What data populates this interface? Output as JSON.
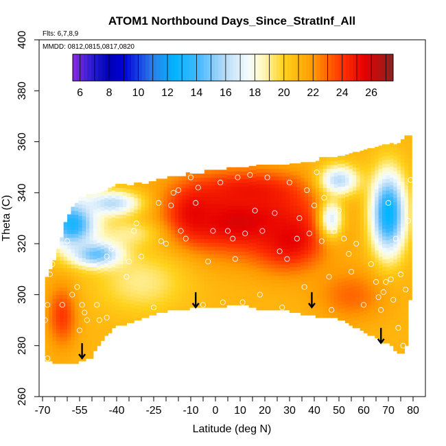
{
  "chart_data": {
    "type": "heatmap",
    "title": "ATOM1 Northbound Days_Since_StratInf_All",
    "flights_note": "Flts: 6,7,8,9",
    "dates_note": "MMDD: 0812,0815,0817,0820",
    "xlabel": "Latitude (deg N)",
    "ylabel": "Theta (C)",
    "xlim": [
      -70,
      80
    ],
    "ylim": [
      260,
      400
    ],
    "x_tick_labels": [
      "-70",
      "-55",
      "-40",
      "-25",
      "-10",
      "0",
      "10",
      "20",
      "30",
      "40",
      "50",
      "60",
      "70",
      "80"
    ],
    "x_tick_values": [
      -70,
      -55,
      -40,
      -25,
      -10,
      0,
      10,
      20,
      30,
      40,
      50,
      60,
      70,
      80
    ],
    "x_minor_tick_values": [
      -65,
      -60,
      -50,
      -45,
      -35,
      -30,
      -20,
      -15,
      -5,
      5,
      15,
      25,
      35,
      45,
      55,
      65,
      75
    ],
    "y_tick_labels": [
      "260",
      "280",
      "300",
      "320",
      "340",
      "360",
      "380",
      "400"
    ],
    "y_tick_values": [
      260,
      280,
      300,
      320,
      340,
      360,
      380,
      400
    ],
    "colorbar": {
      "tick_labels": [
        "6",
        "8",
        "10",
        "12",
        "14",
        "16",
        "18",
        "20",
        "22",
        "24",
        "26"
      ],
      "tick_values": [
        6,
        8,
        10,
        12,
        14,
        16,
        18,
        20,
        22,
        24,
        26
      ],
      "range": [
        5.5,
        27.5
      ],
      "color_stops": [
        {
          "value": 5.5,
          "color": "#8a2be2"
        },
        {
          "value": 7.0,
          "color": "#1f1acd"
        },
        {
          "value": 8.0,
          "color": "#0000b4"
        },
        {
          "value": 9.0,
          "color": "#0000d8"
        },
        {
          "value": 11.0,
          "color": "#2b7fe8"
        },
        {
          "value": 12.5,
          "color": "#00b5ff"
        },
        {
          "value": 14.0,
          "color": "#3fb7ff"
        },
        {
          "value": 16.0,
          "color": "#b9dcf7"
        },
        {
          "value": 17.5,
          "color": "#f4fbff"
        },
        {
          "value": 18.5,
          "color": "#fff9c4"
        },
        {
          "value": 20.0,
          "color": "#ffd21c"
        },
        {
          "value": 22.0,
          "color": "#ff9900"
        },
        {
          "value": 24.0,
          "color": "#ff3300"
        },
        {
          "value": 25.5,
          "color": "#e60000"
        },
        {
          "value": 27.5,
          "color": "#8b2222"
        }
      ]
    },
    "field": {
      "lat_range": [
        -69,
        79
      ],
      "valid_theta_ranges": [
        {
          "lat": -69,
          "bottom": 274,
          "top": 306
        },
        {
          "lat": -66,
          "bottom": 274,
          "top": 310
        },
        {
          "lat": -60,
          "bottom": 273,
          "top": 330
        },
        {
          "lat": -55,
          "bottom": 274,
          "top": 337
        },
        {
          "lat": -50,
          "bottom": 276,
          "top": 339
        },
        {
          "lat": -45,
          "bottom": 284,
          "top": 340
        },
        {
          "lat": -40,
          "bottom": 288,
          "top": 342
        },
        {
          "lat": -30,
          "bottom": 291,
          "top": 343
        },
        {
          "lat": -20,
          "bottom": 294,
          "top": 345
        },
        {
          "lat": -10,
          "bottom": 295,
          "top": 347
        },
        {
          "lat": 0,
          "bottom": 295,
          "top": 348
        },
        {
          "lat": 10,
          "bottom": 297,
          "top": 349
        },
        {
          "lat": 20,
          "bottom": 294,
          "top": 350
        },
        {
          "lat": 30,
          "bottom": 294,
          "top": 351
        },
        {
          "lat": 40,
          "bottom": 292,
          "top": 352
        },
        {
          "lat": 50,
          "bottom": 291,
          "top": 354
        },
        {
          "lat": 60,
          "bottom": 286,
          "top": 356
        },
        {
          "lat": 66,
          "bottom": 283,
          "top": 357
        },
        {
          "lat": 70,
          "bottom": 281,
          "top": 358
        },
        {
          "lat": 74,
          "bottom": 278,
          "top": 359
        },
        {
          "lat": 77,
          "bottom": 277,
          "top": 362
        },
        {
          "lat": 79,
          "bottom": 302,
          "top": 362
        }
      ],
      "base_value": 21,
      "features": [
        {
          "lat": 10,
          "theta": 330,
          "dlat": 28,
          "dtheta": 14,
          "value": 26
        },
        {
          "lat": -8,
          "theta": 332,
          "dlat": 10,
          "dtheta": 10,
          "value": 25.5
        },
        {
          "lat": 30,
          "theta": 322,
          "dlat": 14,
          "dtheta": 12,
          "value": 25.5
        },
        {
          "lat": 14,
          "theta": 340,
          "dlat": 22,
          "dtheta": 8,
          "value": 25
        },
        {
          "lat": 55,
          "theta": 300,
          "dlat": 14,
          "dtheta": 10,
          "value": 23
        },
        {
          "lat": -62,
          "theta": 292,
          "dlat": 6,
          "dtheta": 12,
          "value": 24
        },
        {
          "lat": -30,
          "theta": 305,
          "dlat": 18,
          "dtheta": 12,
          "value": 19
        },
        {
          "lat": -35,
          "theta": 324,
          "dlat": 12,
          "dtheta": 6,
          "value": 19
        },
        {
          "lat": -58,
          "theta": 328,
          "dlat": 10,
          "dtheta": 10,
          "value": 13
        },
        {
          "lat": -48,
          "theta": 316,
          "dlat": 10,
          "dtheta": 5,
          "value": 14.5
        },
        {
          "lat": -42,
          "theta": 336,
          "dlat": 12,
          "dtheta": 5,
          "value": 16
        },
        {
          "lat": 70,
          "theta": 332,
          "dlat": 7,
          "dtheta": 16,
          "value": 12.5
        },
        {
          "lat": 50,
          "theta": 345,
          "dlat": 8,
          "dtheta": 6,
          "value": 16
        },
        {
          "lat": 47,
          "theta": 330,
          "dlat": 5,
          "dtheta": 8,
          "value": 17
        }
      ]
    },
    "arrows": [
      {
        "lat": -54,
        "theta": 278
      },
      {
        "lat": -8,
        "theta": 298
      },
      {
        "lat": 39,
        "theta": 298
      },
      {
        "lat": 67,
        "theta": 284
      }
    ],
    "sample_points": [
      {
        "lat": -69,
        "theta": 290
      },
      {
        "lat": -68,
        "theta": 296
      },
      {
        "lat": -67,
        "theta": 308
      },
      {
        "lat": -66,
        "theta": 312
      },
      {
        "lat": -68,
        "theta": 275
      },
      {
        "lat": -62,
        "theta": 296
      },
      {
        "lat": -58,
        "theta": 300
      },
      {
        "lat": -56,
        "theta": 303
      },
      {
        "lat": -54,
        "theta": 296
      },
      {
        "lat": -53,
        "theta": 293
      },
      {
        "lat": -52,
        "theta": 290
      },
      {
        "lat": -55,
        "theta": 286
      },
      {
        "lat": -60,
        "theta": 321
      },
      {
        "lat": -48,
        "theta": 296
      },
      {
        "lat": -47,
        "theta": 290
      },
      {
        "lat": -44,
        "theta": 291
      },
      {
        "lat": -44,
        "theta": 315
      },
      {
        "lat": -42,
        "theta": 318
      },
      {
        "lat": -36,
        "theta": 307
      },
      {
        "lat": -35,
        "theta": 313
      },
      {
        "lat": -33,
        "theta": 325
      },
      {
        "lat": -32,
        "theta": 328
      },
      {
        "lat": -30,
        "theta": 315
      },
      {
        "lat": -25,
        "theta": 295
      },
      {
        "lat": -22,
        "theta": 321
      },
      {
        "lat": -20,
        "theta": 320
      },
      {
        "lat": -23,
        "theta": 336
      },
      {
        "lat": -18,
        "theta": 335
      },
      {
        "lat": -17,
        "theta": 340
      },
      {
        "lat": -15,
        "theta": 341
      },
      {
        "lat": -14,
        "theta": 325
      },
      {
        "lat": -12,
        "theta": 322
      },
      {
        "lat": -10,
        "theta": 346
      },
      {
        "lat": -8,
        "theta": 336
      },
      {
        "lat": -7,
        "theta": 342
      },
      {
        "lat": -5,
        "theta": 296
      },
      {
        "lat": -3,
        "theta": 313
      },
      {
        "lat": -1,
        "theta": 325
      },
      {
        "lat": 2,
        "theta": 344
      },
      {
        "lat": 3,
        "theta": 297
      },
      {
        "lat": 5,
        "theta": 325
      },
      {
        "lat": 7,
        "theta": 322
      },
      {
        "lat": 8,
        "theta": 314
      },
      {
        "lat": 9,
        "theta": 346
      },
      {
        "lat": 11,
        "theta": 297
      },
      {
        "lat": 12,
        "theta": 324
      },
      {
        "lat": 14,
        "theta": 347
      },
      {
        "lat": 16,
        "theta": 333
      },
      {
        "lat": 18,
        "theta": 300
      },
      {
        "lat": 19,
        "theta": 325
      },
      {
        "lat": 21,
        "theta": 346
      },
      {
        "lat": 24,
        "theta": 332
      },
      {
        "lat": 26,
        "theta": 317
      },
      {
        "lat": 27,
        "theta": 295
      },
      {
        "lat": 29,
        "theta": 314
      },
      {
        "lat": 30,
        "theta": 344
      },
      {
        "lat": 33,
        "theta": 322
      },
      {
        "lat": 34,
        "theta": 330
      },
      {
        "lat": 36,
        "theta": 303
      },
      {
        "lat": 37,
        "theta": 341
      },
      {
        "lat": 38,
        "theta": 324
      },
      {
        "lat": 40,
        "theta": 335
      },
      {
        "lat": 41,
        "theta": 348
      },
      {
        "lat": 43,
        "theta": 321
      },
      {
        "lat": 44,
        "theta": 338
      },
      {
        "lat": 46,
        "theta": 307
      },
      {
        "lat": 47,
        "theta": 294
      },
      {
        "lat": 48,
        "theta": 325
      },
      {
        "lat": 50,
        "theta": 333
      },
      {
        "lat": 52,
        "theta": 322
      },
      {
        "lat": 54,
        "theta": 316
      },
      {
        "lat": 55,
        "theta": 309
      },
      {
        "lat": 57,
        "theta": 320
      },
      {
        "lat": 60,
        "theta": 296
      },
      {
        "lat": 63,
        "theta": 312
      },
      {
        "lat": 65,
        "theta": 305
      },
      {
        "lat": 66,
        "theta": 299
      },
      {
        "lat": 67,
        "theta": 294
      },
      {
        "lat": 68,
        "theta": 301
      },
      {
        "lat": 69,
        "theta": 305
      },
      {
        "lat": 70,
        "theta": 336
      },
      {
        "lat": 71,
        "theta": 306
      },
      {
        "lat": 72,
        "theta": 298
      },
      {
        "lat": 73,
        "theta": 322
      },
      {
        "lat": 74,
        "theta": 287
      },
      {
        "lat": 75,
        "theta": 308
      },
      {
        "lat": 76,
        "theta": 280
      },
      {
        "lat": 77,
        "theta": 302
      },
      {
        "lat": 78,
        "theta": 329
      },
      {
        "lat": 79,
        "theta": 345
      }
    ]
  }
}
